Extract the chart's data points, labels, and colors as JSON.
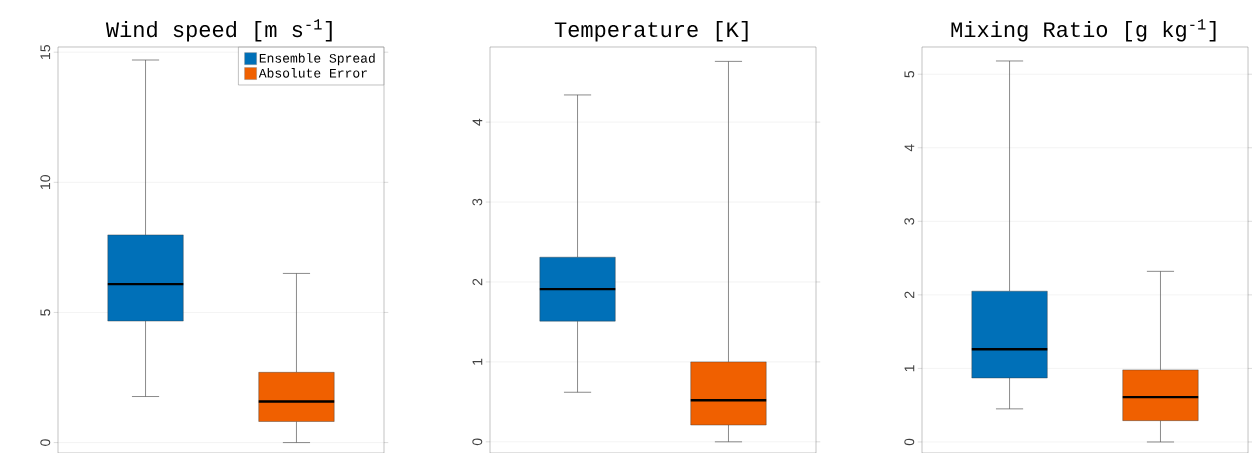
{
  "chart_data": [
    {
      "type": "box",
      "title": "Wind speed [m s$^{-1}$]",
      "categories": [
        null,
        null
      ],
      "ylim": [
        -0.4,
        15.2
      ],
      "yticks": [
        0,
        5,
        10,
        15
      ],
      "grid": "y",
      "tick_labels": "y",
      "legend": "top right",
      "series": [
        {
          "name": "Ensemble Spread",
          "color": "#0070b8",
          "boxes": [
            {
              "low": 1.77,
              "q1": 4.67,
              "median": 6.09,
              "q3": 7.98,
              "high": 14.7
            },
            null
          ]
        },
        {
          "name": "Absolute Error",
          "color": "#f06000",
          "boxes": [
            null,
            {
              "low": 0,
              "q1": 0.81,
              "median": 1.58,
              "q3": 2.7,
              "high": 6.5
            }
          ]
        }
      ]
    },
    {
      "type": "box",
      "title": "Temperature [K]",
      "categories": [
        null,
        null
      ],
      "ylim": [
        -0.14,
        4.94
      ],
      "yticks": [
        0,
        1,
        2,
        3,
        4
      ],
      "grid": "y",
      "tick_labels": "y",
      "series": [
        {
          "color": "#0070b8",
          "boxes": [
            {
              "low": 0.62,
              "q1": 1.51,
              "median": 1.91,
              "q3": 2.31,
              "high": 4.34
            },
            null
          ]
        },
        {
          "color": "#f06000",
          "boxes": [
            null,
            {
              "low": 0,
              "q1": 0.21,
              "median": 0.52,
              "q3": 1.0,
              "high": 4.76
            }
          ]
        }
      ]
    },
    {
      "type": "box",
      "title": "Mixing Ratio [g kg$^{-1}$]",
      "categories": [
        null,
        null
      ],
      "ylim": [
        -0.15,
        5.37
      ],
      "yticks": [
        0,
        1,
        2,
        3,
        4,
        5
      ],
      "grid": "y",
      "tick_labels": "y",
      "series": [
        {
          "color": "#0070b8",
          "boxes": [
            {
              "low": 0.45,
              "q1": 0.87,
              "median": 1.26,
              "q3": 2.05,
              "high": 5.18
            },
            null
          ]
        },
        {
          "color": "#f06000",
          "boxes": [
            null,
            {
              "low": 0,
              "q1": 0.29,
              "median": 0.61,
              "q3": 0.98,
              "high": 2.32
            }
          ]
        }
      ]
    }
  ]
}
